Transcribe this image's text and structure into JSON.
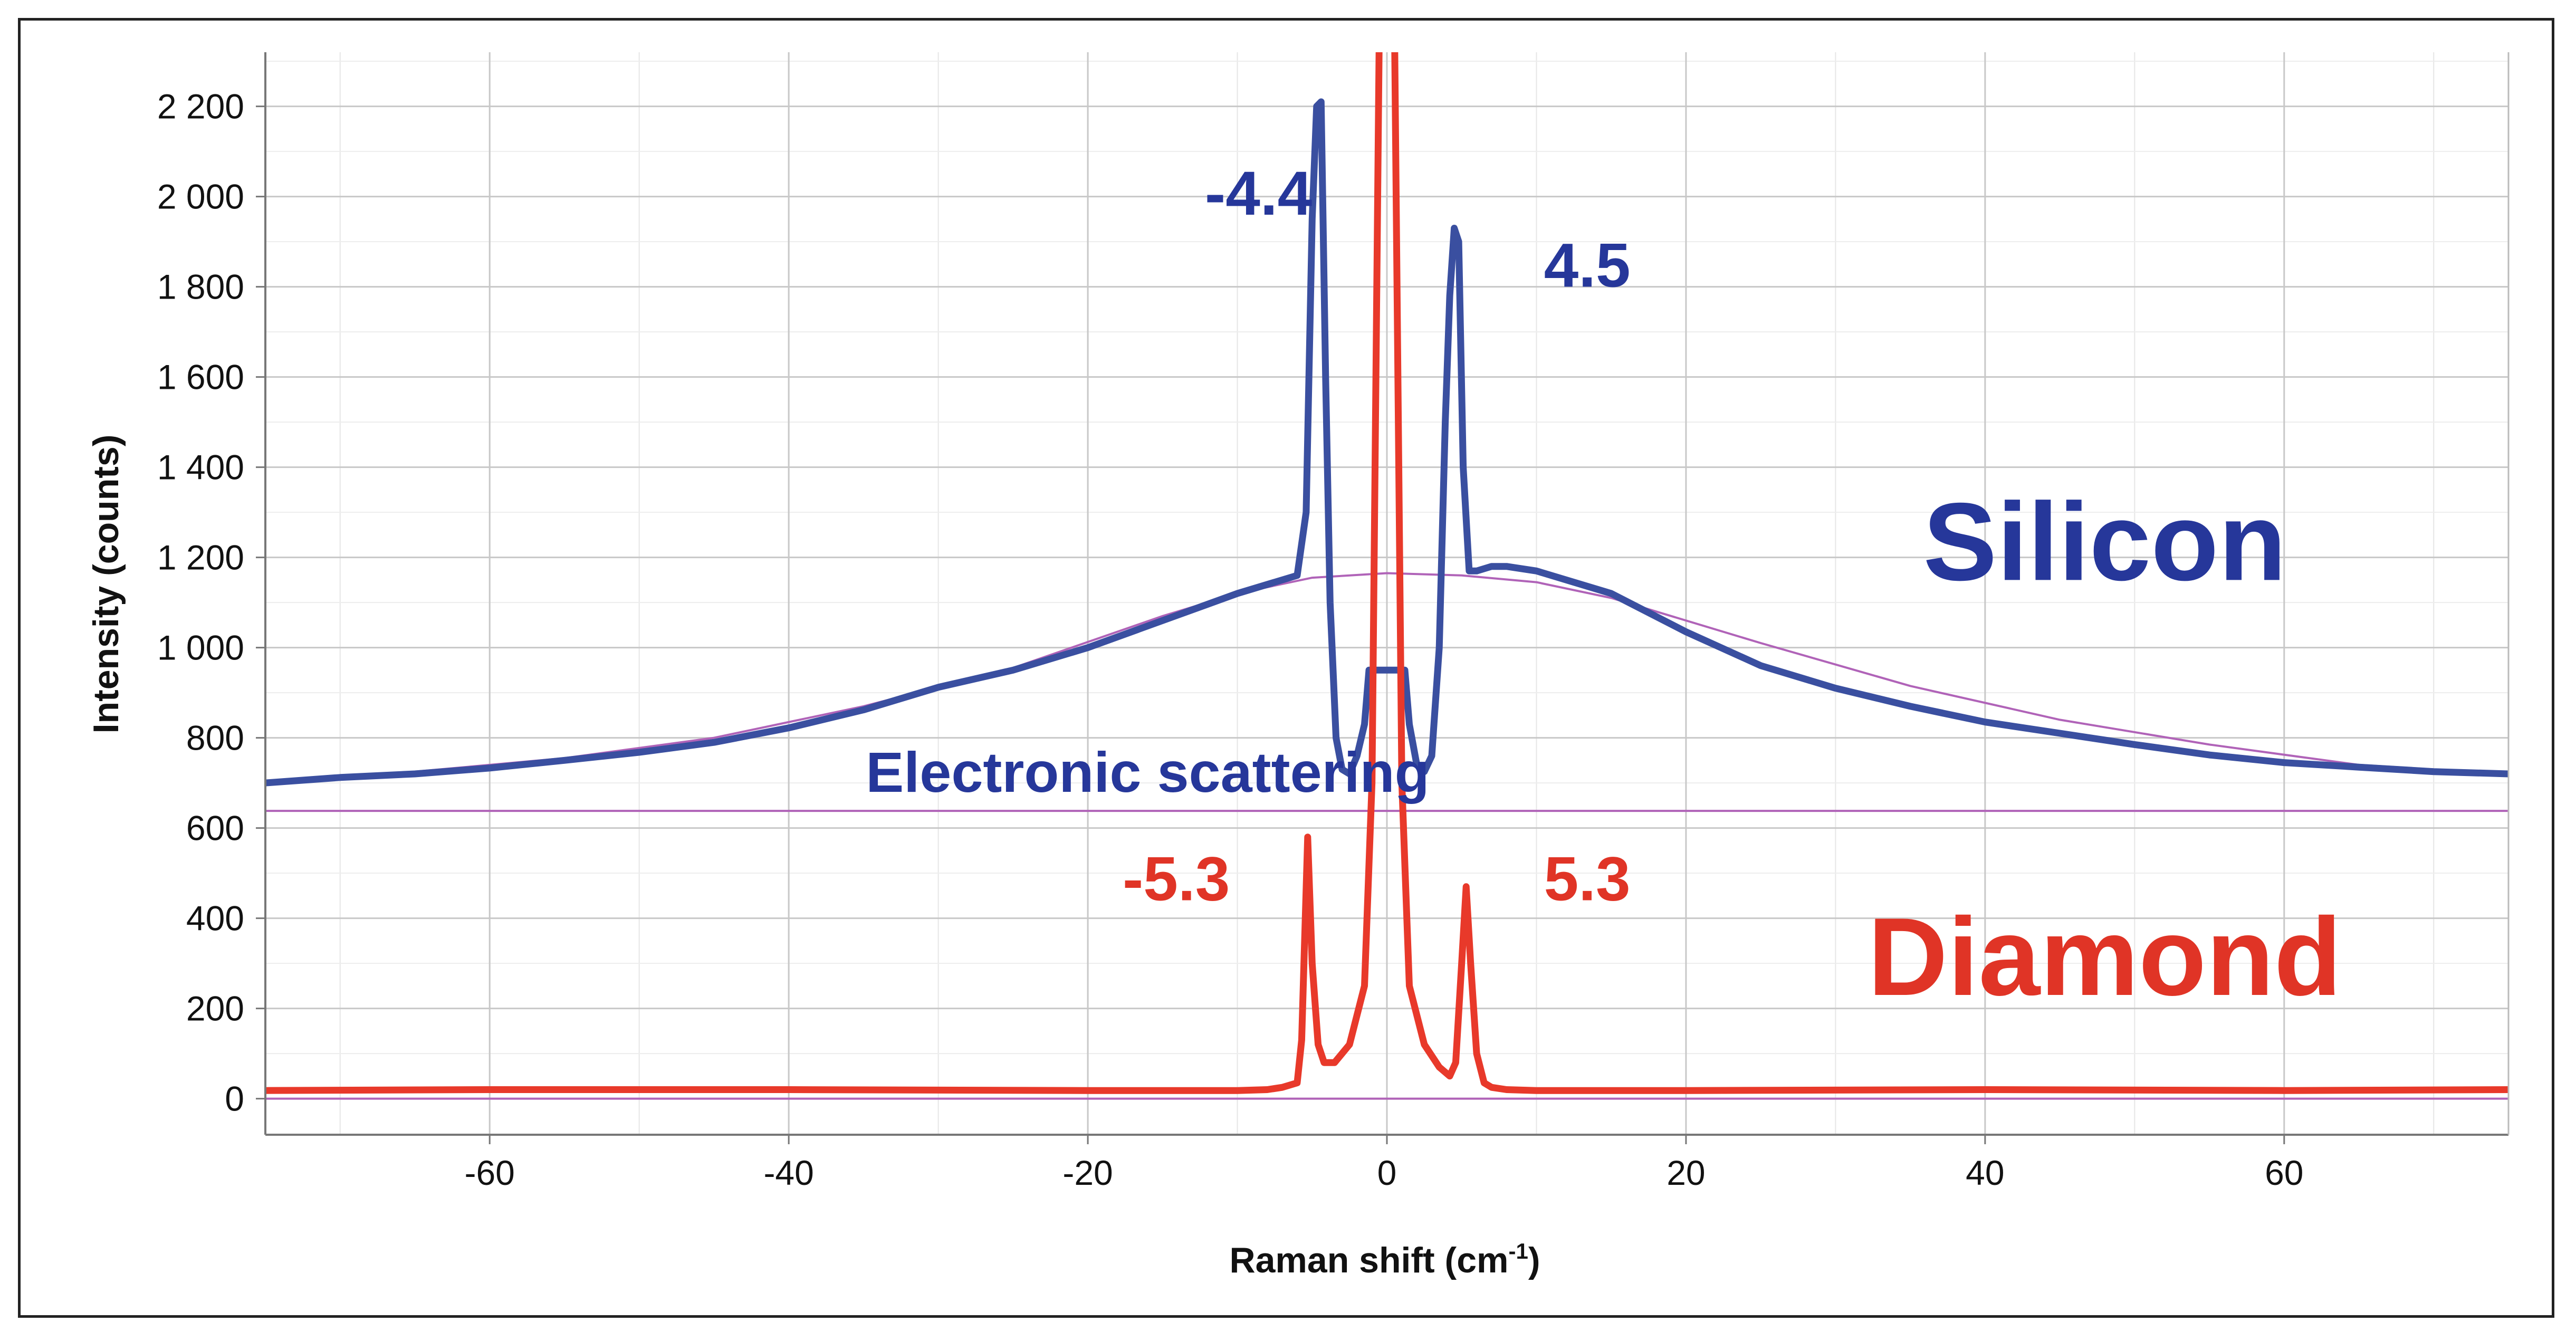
{
  "chart_data": {
    "type": "line",
    "xlabel": "Raman shift (cm",
    "xlabel_sup": "-1",
    "xlabel_end": ")",
    "ylabel": "Intensity (counts)",
    "xlim": [
      -75,
      75
    ],
    "ylim": [
      -80,
      2320
    ],
    "x_ticks": [
      -60,
      -40,
      -20,
      0,
      20,
      40,
      60
    ],
    "x_tick_labels": [
      "-60",
      "-40",
      "-20",
      "0",
      "20",
      "40",
      "60"
    ],
    "y_ticks": [
      0,
      200,
      400,
      600,
      800,
      1000,
      1200,
      1400,
      1600,
      1800,
      2000,
      2200
    ],
    "y_tick_labels": [
      "0",
      "200",
      "400",
      "600",
      "800",
      "1 000",
      "1 200",
      "1 400",
      "1 600",
      "1 800",
      "2 000",
      "2 200"
    ],
    "grid": true,
    "colors": {
      "silicon": "#3a4fa0",
      "diamond": "#e8392a",
      "fit": "#b063b8",
      "baseline": "#b063b8",
      "grid": "#c8c8c8",
      "annotation_blue": "#26379a",
      "annotation_red": "#e03426"
    },
    "series": [
      {
        "key": "silicon",
        "x": [
          -75,
          -70,
          -65,
          -60,
          -55,
          -50,
          -45,
          -40,
          -35,
          -30,
          -25,
          -20,
          -15,
          -10,
          -8,
          -6,
          -5.4,
          -5,
          -4.7,
          -4.4,
          -4.1,
          -3.8,
          -3.4,
          -3,
          -2.5,
          -2,
          -1.5,
          -1.2,
          1.2,
          1.5,
          2,
          2.5,
          3,
          3.5,
          3.9,
          4.2,
          4.5,
          4.8,
          5.1,
          5.5,
          6,
          7,
          8,
          10,
          15,
          20,
          25,
          30,
          35,
          40,
          45,
          50,
          55,
          60,
          65,
          70,
          75
        ],
        "y": [
          700,
          712,
          720,
          733,
          750,
          768,
          790,
          822,
          862,
          912,
          950,
          1000,
          1060,
          1120,
          1140,
          1160,
          1300,
          1950,
          2200,
          2210,
          1600,
          1100,
          800,
          730,
          720,
          760,
          830,
          950,
          950,
          830,
          740,
          725,
          760,
          1000,
          1500,
          1780,
          1930,
          1900,
          1400,
          1170,
          1170,
          1180,
          1180,
          1170,
          1120,
          1035,
          960,
          910,
          870,
          835,
          810,
          785,
          762,
          745,
          735,
          725,
          720
        ]
      },
      {
        "key": "diamond",
        "x": [
          -75,
          -60,
          -40,
          -20,
          -10,
          -8,
          -7,
          -6,
          -5.7,
          -5.3,
          -5,
          -4.6,
          -4.2,
          -3.5,
          -2.5,
          -1.5,
          -1,
          -0.5,
          0,
          0.5,
          1,
          1.5,
          2.5,
          3.5,
          4.2,
          4.6,
          5,
          5.3,
          5.6,
          6,
          6.5,
          7,
          8,
          10,
          20,
          40,
          60,
          75
        ],
        "y": [
          18,
          20,
          20,
          18,
          18,
          20,
          25,
          35,
          130,
          580,
          300,
          120,
          80,
          80,
          120,
          250,
          700,
          2400,
          2400,
          2400,
          700,
          250,
          120,
          70,
          50,
          80,
          300,
          470,
          300,
          100,
          35,
          25,
          20,
          18,
          18,
          20,
          18,
          20
        ]
      },
      {
        "key": "fit",
        "x": [
          -75,
          -65,
          -55,
          -45,
          -35,
          -25,
          -15,
          -10,
          -5,
          0,
          5,
          10,
          15,
          25,
          35,
          45,
          55,
          65,
          75
        ],
        "y": [
          697,
          725,
          755,
          800,
          870,
          955,
          1070,
          1120,
          1155,
          1165,
          1160,
          1145,
          1110,
          1010,
          915,
          840,
          785,
          740,
          720
        ]
      }
    ],
    "annotations": [
      {
        "key": "si_neg",
        "text": "-4.4",
        "x": -5.0,
        "y": 1960
      },
      {
        "key": "si_pos",
        "text": "4.5",
        "x": 10.5,
        "y": 1800
      },
      {
        "key": "di_neg",
        "text": "-5.3",
        "x": -10.5,
        "y": 440
      },
      {
        "key": "di_pos",
        "text": "5.3",
        "x": 10.5,
        "y": 440
      },
      {
        "key": "electronic",
        "text": "Electronic scattering",
        "x": -16,
        "y": 680
      },
      {
        "key": "silicon",
        "text": "Silicon",
        "x": 48,
        "y": 1150
      },
      {
        "key": "diamond",
        "text": "Diamond",
        "x": 48,
        "y": 230
      }
    ],
    "baselines": [
      {
        "key": "electronic-baseline",
        "y": 638
      },
      {
        "key": "zero-baseline",
        "y": 0
      }
    ]
  }
}
